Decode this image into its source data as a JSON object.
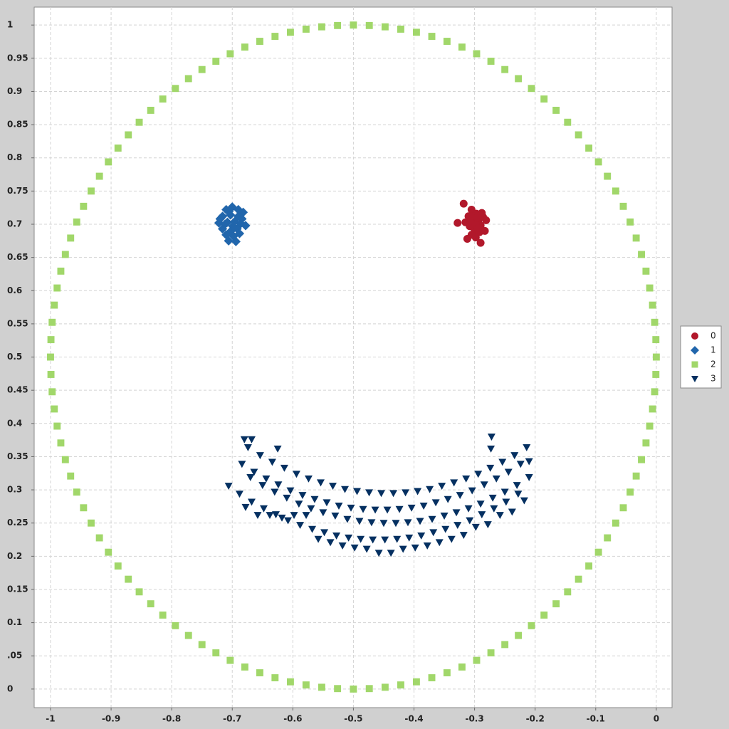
{
  "chart_data": {
    "type": "scatter",
    "xlim": [
      -1.027,
      0.026
    ],
    "ylim": [
      -0.028,
      1.027
    ],
    "xticks": [
      -1,
      -0.9,
      -0.8,
      -0.7,
      -0.6,
      -0.5,
      -0.4,
      -0.3,
      -0.2,
      -0.1,
      0
    ],
    "yticks": [
      0,
      {
        "value": 0.05,
        "label": ".05"
      },
      0.1,
      0.15,
      0.2,
      0.25,
      0.3,
      0.35,
      0.4,
      0.45,
      0.5,
      0.55,
      0.6,
      0.65,
      0.7,
      0.75,
      0.8,
      0.85,
      0.9,
      0.95,
      1
    ],
    "grid": true,
    "legend": "right",
    "series": [
      {
        "name": "0",
        "color": "#b2182b",
        "marker": "circle",
        "x": [
          -0.318,
          -0.305,
          -0.297,
          -0.31,
          -0.302,
          -0.294,
          -0.286,
          -0.281,
          -0.29,
          -0.298,
          -0.308,
          -0.315,
          -0.328,
          -0.3,
          -0.292,
          -0.283,
          -0.305,
          -0.312,
          -0.298,
          -0.29,
          -0.295,
          -0.302,
          -0.288,
          -0.307,
          -0.296
        ],
        "values": [
          0.731,
          0.722,
          0.716,
          0.712,
          0.708,
          0.705,
          0.711,
          0.706,
          0.698,
          0.7,
          0.697,
          0.703,
          0.702,
          0.69,
          0.688,
          0.69,
          0.684,
          0.678,
          0.68,
          0.672,
          0.694,
          0.712,
          0.717,
          0.705,
          0.71
        ]
      },
      {
        "name": "1",
        "color": "#2166ac",
        "marker": "diamond",
        "x": [
          -0.71,
          -0.7,
          -0.69,
          -0.716,
          -0.703,
          -0.69,
          -0.682,
          -0.722,
          -0.708,
          -0.696,
          -0.686,
          -0.678,
          -0.716,
          -0.702,
          -0.692,
          -0.71,
          -0.698,
          -0.688,
          -0.706,
          -0.694,
          -0.712,
          -0.699,
          -0.72,
          -0.684,
          -0.705
        ],
        "values": [
          0.722,
          0.726,
          0.722,
          0.712,
          0.714,
          0.712,
          0.718,
          0.702,
          0.703,
          0.704,
          0.701,
          0.698,
          0.693,
          0.69,
          0.693,
          0.684,
          0.682,
          0.686,
          0.675,
          0.674,
          0.7,
          0.697,
          0.708,
          0.708,
          0.72
        ]
      },
      {
        "name": "2",
        "color": "#a1d76a",
        "marker": "square",
        "x": [
          0,
          -0.0007,
          -0.0027,
          -0.0062,
          -0.0109,
          -0.017,
          -0.0245,
          -0.0332,
          -0.0432,
          -0.0545,
          -0.067,
          -0.0807,
          -0.0955,
          -0.1114,
          -0.1284,
          -0.1464,
          -0.1654,
          -0.1853,
          -0.2061,
          -0.2277,
          -0.25,
          -0.273,
          -0.2966,
          -0.3208,
          -0.3455,
          -0.3706,
          -0.396,
          -0.4218,
          -0.4477,
          -0.4738,
          -0.5,
          -0.5262,
          -0.5523,
          -0.5782,
          -0.604,
          -0.6294,
          -0.6545,
          -0.6792,
          -0.7034,
          -0.727,
          -0.75,
          -0.7723,
          -0.7939,
          -0.8147,
          -0.8346,
          -0.8536,
          -0.8716,
          -0.8886,
          -0.9045,
          -0.9193,
          -0.933,
          -0.9455,
          -0.9568,
          -0.9668,
          -0.9755,
          -0.983,
          -0.9891,
          -0.9938,
          -0.9973,
          -0.9993,
          -1,
          -0.9993,
          -0.9973,
          -0.9938,
          -0.9891,
          -0.983,
          -0.9755,
          -0.9668,
          -0.9568,
          -0.9455,
          -0.933,
          -0.9193,
          -0.9045,
          -0.8886,
          -0.8716,
          -0.8536,
          -0.8346,
          -0.8147,
          -0.7939,
          -0.7723,
          -0.75,
          -0.727,
          -0.7034,
          -0.6792,
          -0.6545,
          -0.6294,
          -0.604,
          -0.5782,
          -0.5523,
          -0.5262,
          -0.5,
          -0.4738,
          -0.4477,
          -0.4218,
          -0.396,
          -0.3706,
          -0.3455,
          -0.3208,
          -0.2966,
          -0.273,
          -0.25,
          -0.2277,
          -0.2061,
          -0.1853,
          -0.1654,
          -0.1464,
          -0.1284,
          -0.1114,
          -0.0955,
          -0.0807,
          -0.067,
          -0.0545,
          -0.0432,
          -0.0332,
          -0.0245,
          -0.017,
          -0.0109,
          -0.0062,
          -0.0027,
          -0.0007
        ],
        "values": [
          0.5,
          0.5262,
          0.5523,
          0.5782,
          0.604,
          0.6294,
          0.6545,
          0.6792,
          0.7034,
          0.727,
          0.75,
          0.7723,
          0.7939,
          0.8147,
          0.8346,
          0.8536,
          0.8716,
          0.8886,
          0.9045,
          0.9193,
          0.933,
          0.9455,
          0.9568,
          0.9668,
          0.9755,
          0.983,
          0.9891,
          0.9938,
          0.9973,
          0.9993,
          1,
          0.9993,
          0.9973,
          0.9938,
          0.9891,
          0.983,
          0.9755,
          0.9668,
          0.9568,
          0.9455,
          0.933,
          0.9193,
          0.9045,
          0.8886,
          0.8716,
          0.8536,
          0.8346,
          0.8147,
          0.7939,
          0.7723,
          0.75,
          0.727,
          0.7034,
          0.6792,
          0.6545,
          0.6294,
          0.604,
          0.5782,
          0.5523,
          0.5262,
          0.5,
          0.4738,
          0.4477,
          0.4218,
          0.396,
          0.3706,
          0.3455,
          0.3208,
          0.2966,
          0.273,
          0.25,
          0.2277,
          0.2061,
          0.1853,
          0.1654,
          0.1464,
          0.1284,
          0.1114,
          0.0955,
          0.0807,
          0.067,
          0.0545,
          0.0432,
          0.0332,
          0.0245,
          0.017,
          0.0109,
          0.0062,
          0.0027,
          0.0007,
          0,
          0.0007,
          0.0027,
          0.0062,
          0.0109,
          0.017,
          0.0245,
          0.0332,
          0.0432,
          0.0545,
          0.067,
          0.0807,
          0.0955,
          0.1114,
          0.1284,
          0.1464,
          0.1654,
          0.1853,
          0.2061,
          0.2277,
          0.25,
          0.273,
          0.2966,
          0.3208,
          0.3455,
          0.3706,
          0.396,
          0.4218,
          0.4477,
          0.4738
        ]
      },
      {
        "name": "3",
        "color": "#053061",
        "marker": "triangle-down",
        "x": [
          -0.674,
          -0.684,
          -0.67,
          -0.688,
          -0.678,
          -0.68,
          -0.706,
          -0.668,
          -0.654,
          -0.664,
          -0.65,
          -0.668,
          -0.658,
          -0.634,
          -0.644,
          -0.63,
          -0.648,
          -0.638,
          -0.614,
          -0.624,
          -0.61,
          -0.628,
          -0.618,
          -0.625,
          -0.594,
          -0.604,
          -0.59,
          -0.608,
          -0.598,
          -0.574,
          -0.584,
          -0.57,
          -0.588,
          -0.578,
          -0.554,
          -0.564,
          -0.55,
          -0.568,
          -0.558,
          -0.534,
          -0.544,
          -0.53,
          -0.548,
          -0.538,
          -0.514,
          -0.524,
          -0.51,
          -0.528,
          -0.518,
          -0.494,
          -0.504,
          -0.49,
          -0.508,
          -0.498,
          -0.474,
          -0.484,
          -0.47,
          -0.488,
          -0.478,
          -0.454,
          -0.464,
          -0.45,
          -0.468,
          -0.458,
          -0.434,
          -0.444,
          -0.43,
          -0.448,
          -0.438,
          -0.414,
          -0.424,
          -0.41,
          -0.428,
          -0.418,
          -0.394,
          -0.404,
          -0.39,
          -0.408,
          -0.398,
          -0.374,
          -0.384,
          -0.37,
          -0.388,
          -0.378,
          -0.354,
          -0.364,
          -0.35,
          -0.368,
          -0.358,
          -0.334,
          -0.344,
          -0.33,
          -0.348,
          -0.338,
          -0.314,
          -0.324,
          -0.31,
          -0.328,
          -0.318,
          -0.294,
          -0.304,
          -0.29,
          -0.308,
          -0.298,
          -0.274,
          -0.284,
          -0.27,
          -0.288,
          -0.278,
          -0.273,
          -0.254,
          -0.264,
          -0.25,
          -0.268,
          -0.258,
          -0.272,
          -0.234,
          -0.244,
          -0.23,
          -0.248,
          -0.238,
          -0.214,
          -0.224,
          -0.21,
          -0.228,
          -0.218,
          -0.21
        ],
        "values": [
          0.364,
          0.339,
          0.319,
          0.294,
          0.274,
          0.376,
          0.306,
          0.376,
          0.352,
          0.327,
          0.307,
          0.282,
          0.262,
          0.342,
          0.317,
          0.297,
          0.272,
          0.262,
          0.333,
          0.308,
          0.288,
          0.263,
          0.258,
          0.362,
          0.324,
          0.299,
          0.279,
          0.254,
          0.262,
          0.317,
          0.292,
          0.272,
          0.247,
          0.262,
          0.311,
          0.286,
          0.266,
          0.241,
          0.226,
          0.306,
          0.281,
          0.261,
          0.236,
          0.221,
          0.301,
          0.276,
          0.256,
          0.231,
          0.216,
          0.298,
          0.273,
          0.253,
          0.228,
          0.213,
          0.296,
          0.271,
          0.251,
          0.226,
          0.211,
          0.295,
          0.27,
          0.25,
          0.225,
          0.205,
          0.295,
          0.27,
          0.25,
          0.225,
          0.205,
          0.296,
          0.271,
          0.251,
          0.226,
          0.211,
          0.298,
          0.273,
          0.253,
          0.228,
          0.213,
          0.301,
          0.276,
          0.256,
          0.231,
          0.216,
          0.306,
          0.281,
          0.261,
          0.236,
          0.221,
          0.311,
          0.286,
          0.266,
          0.241,
          0.226,
          0.317,
          0.292,
          0.272,
          0.247,
          0.232,
          0.324,
          0.299,
          0.279,
          0.254,
          0.244,
          0.333,
          0.308,
          0.288,
          0.263,
          0.248,
          0.362,
          0.342,
          0.317,
          0.297,
          0.272,
          0.262,
          0.38,
          0.352,
          0.327,
          0.307,
          0.282,
          0.267,
          0.364,
          0.339,
          0.319,
          0.294,
          0.284,
          0.343
        ]
      }
    ]
  }
}
